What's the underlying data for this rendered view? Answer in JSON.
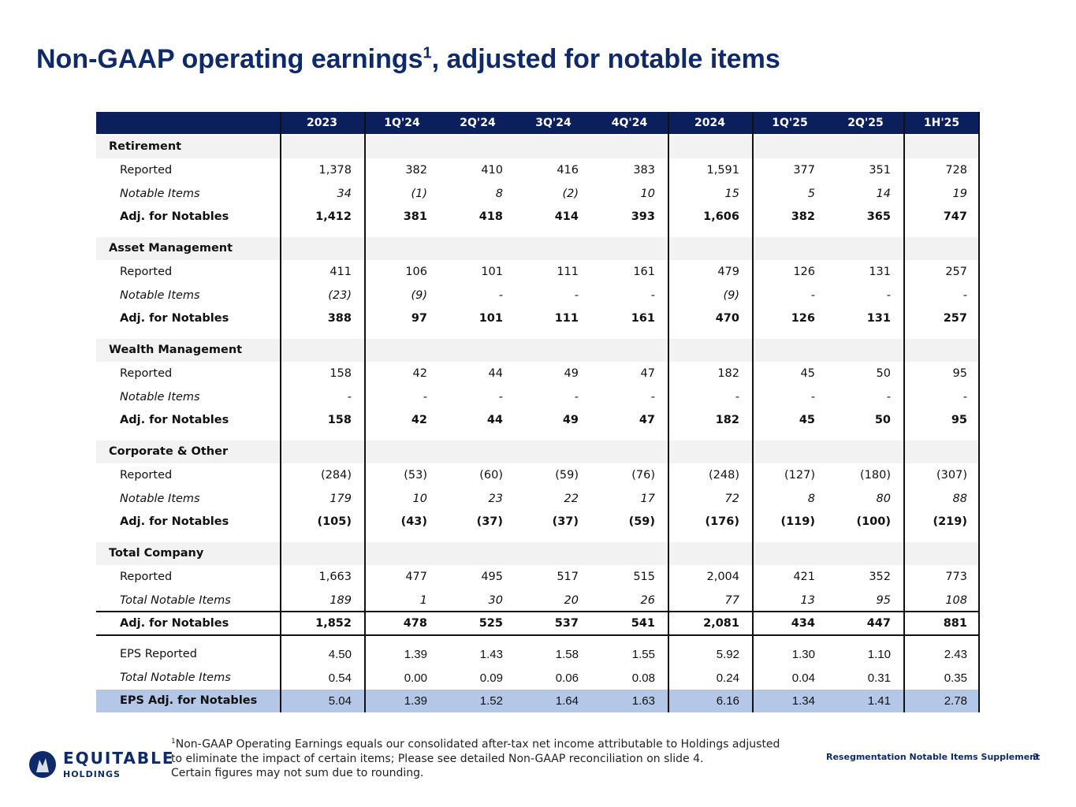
{
  "title": {
    "main": "Non-GAAP operating earnings",
    "sup": "1",
    "rest": ", adjusted for notable items"
  },
  "table": {
    "columns": [
      "2023",
      "1Q'24",
      "2Q'24",
      "3Q'24",
      "4Q'24",
      "2024",
      "1Q'25",
      "2Q'25",
      "1H'25"
    ],
    "sections": [
      {
        "name": "Retirement",
        "rows": [
          {
            "label": "Reported",
            "values": [
              "1,378",
              "382",
              "410",
              "416",
              "383",
              "1,591",
              "377",
              "351",
              "728"
            ]
          },
          {
            "label": "Notable Items",
            "values": [
              "34",
              "(1)",
              "8",
              "(2)",
              "10",
              "15",
              "5",
              "14",
              "19"
            ]
          },
          {
            "label": "Adj. for Notables",
            "values": [
              "1,412",
              "381",
              "418",
              "414",
              "393",
              "1,606",
              "382",
              "365",
              "747"
            ]
          }
        ]
      },
      {
        "name": "Asset Management",
        "rows": [
          {
            "label": "Reported",
            "values": [
              "411",
              "106",
              "101",
              "111",
              "161",
              "479",
              "126",
              "131",
              "257"
            ]
          },
          {
            "label": "Notable Items",
            "values": [
              "(23)",
              "(9)",
              "-",
              "-",
              "-",
              "(9)",
              "-",
              "-",
              "-"
            ]
          },
          {
            "label": "Adj. for Notables",
            "values": [
              "388",
              "97",
              "101",
              "111",
              "161",
              "470",
              "126",
              "131",
              "257"
            ]
          }
        ]
      },
      {
        "name": "Wealth Management",
        "rows": [
          {
            "label": "Reported",
            "values": [
              "158",
              "42",
              "44",
              "49",
              "47",
              "182",
              "45",
              "50",
              "95"
            ]
          },
          {
            "label": "Notable Items",
            "values": [
              "-",
              "-",
              "-",
              "-",
              "-",
              "-",
              "-",
              "-",
              "-"
            ]
          },
          {
            "label": "Adj. for Notables",
            "values": [
              "158",
              "42",
              "44",
              "49",
              "47",
              "182",
              "45",
              "50",
              "95"
            ]
          }
        ]
      },
      {
        "name": "Corporate & Other",
        "rows": [
          {
            "label": "Reported",
            "values": [
              "(284)",
              "(53)",
              "(60)",
              "(59)",
              "(76)",
              "(248)",
              "(127)",
              "(180)",
              "(307)"
            ]
          },
          {
            "label": "Notable Items",
            "values": [
              "179",
              "10",
              "23",
              "22",
              "17",
              "72",
              "8",
              "80",
              "88"
            ]
          },
          {
            "label": "Adj. for Notables",
            "values": [
              "(105)",
              "(43)",
              "(37)",
              "(37)",
              "(59)",
              "(176)",
              "(119)",
              "(100)",
              "(219)"
            ]
          }
        ]
      },
      {
        "name": "Total Company",
        "rows": [
          {
            "label": "Reported",
            "values": [
              "1,663",
              "477",
              "495",
              "517",
              "515",
              "2,004",
              "421",
              "352",
              "773"
            ]
          },
          {
            "label": "Total Notable Items",
            "values": [
              "189",
              "1",
              "30",
              "20",
              "26",
              "77",
              "13",
              "95",
              "108"
            ]
          },
          {
            "label": "Adj. for Notables",
            "values": [
              "1,852",
              "478",
              "525",
              "537",
              "541",
              "2,081",
              "434",
              "447",
              "881"
            ]
          }
        ]
      }
    ],
    "eps": [
      {
        "label": "EPS Reported",
        "values": [
          "4.50",
          "1.39",
          "1.43",
          "1.58",
          "1.55",
          "5.92",
          "1.30",
          "1.10",
          "2.43"
        ]
      },
      {
        "label": "Total Notable Items",
        "values": [
          "0.54",
          "0.00",
          "0.09",
          "0.06",
          "0.08",
          "0.24",
          "0.04",
          "0.31",
          "0.35"
        ]
      },
      {
        "label": "EPS Adj. for Notables",
        "values": [
          "5.04",
          "1.39",
          "1.52",
          "1.64",
          "1.63",
          "6.16",
          "1.34",
          "1.41",
          "2.78"
        ]
      }
    ]
  },
  "footnote": {
    "sup": "1",
    "text": "Non-GAAP Operating Earnings equals our consolidated after-tax net income attributable to Holdings adjusted to eliminate the impact of certain items; Please see detailed Non-GAAP reconciliation on slide 4.",
    "note": "Certain figures may not sum due to rounding."
  },
  "logo": {
    "name": "EQUITABLE",
    "sub": "HOLDINGS"
  },
  "footer": {
    "text": "Resegmentation Notable Items Supplement",
    "page": "3"
  }
}
